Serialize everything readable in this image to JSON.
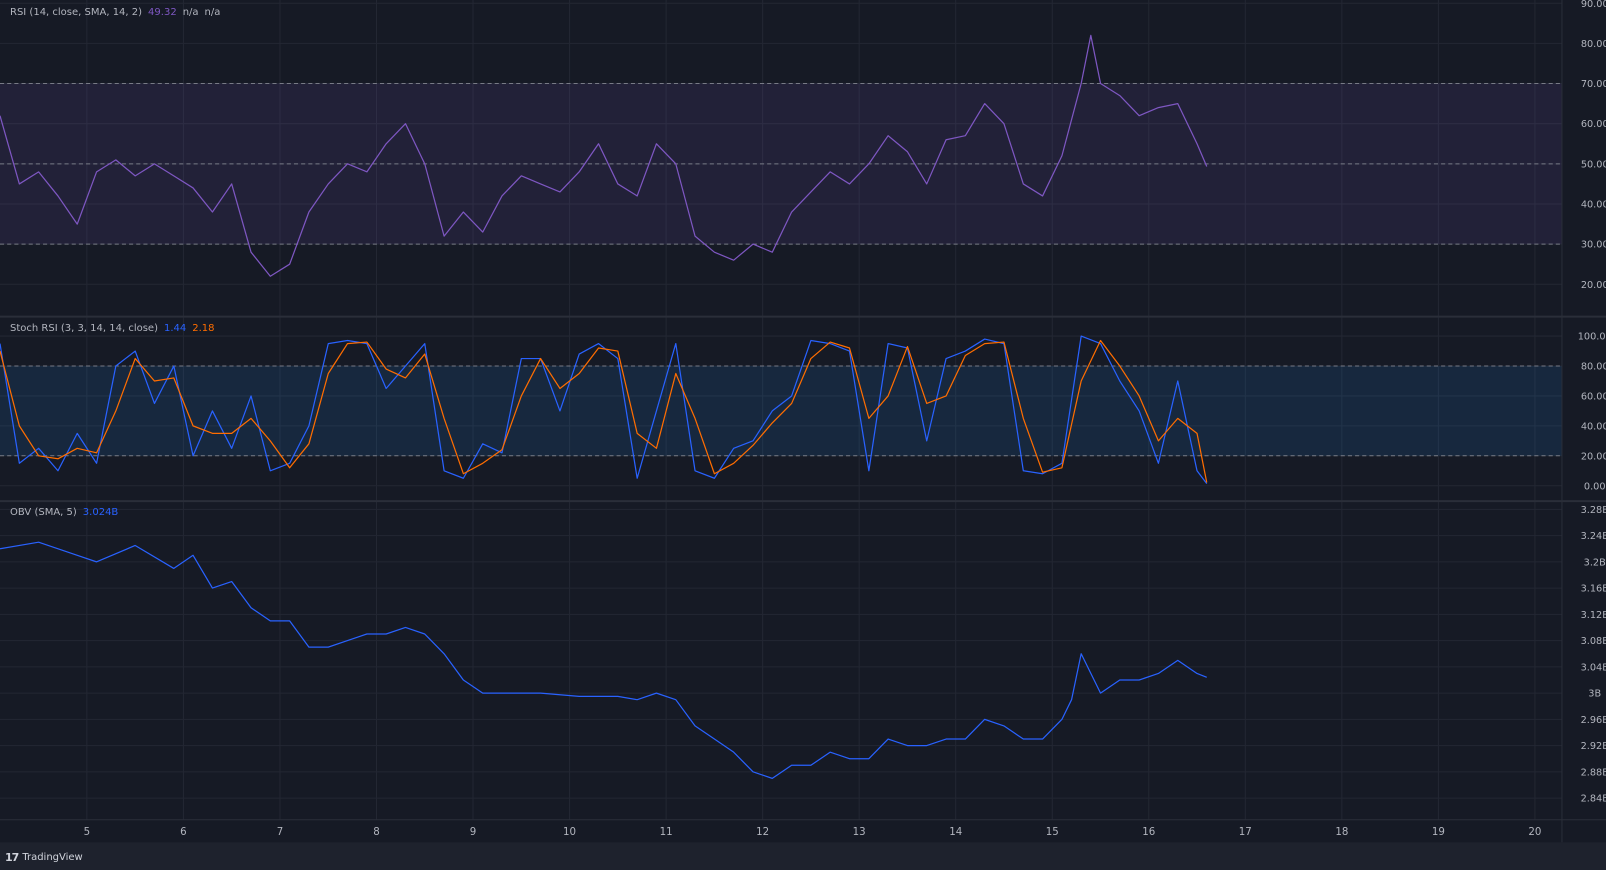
{
  "brand": "TradingView",
  "colors": {
    "background": "#161a25",
    "grid": "#232733",
    "rsi": "#7e57c2",
    "stoch_k": "#2962ff",
    "stoch_d": "#ff6d00",
    "obv": "#2962ff",
    "rsi_band": "#7e57c2",
    "stoch_band": "#2196f3",
    "text": "#b2b5be"
  },
  "chart_data": [
    {
      "type": "line",
      "legend": {
        "title": "RSI (14, close, SMA, 14, 2)",
        "value": "49.32",
        "extra1": "n/a",
        "extra2": "n/a"
      },
      "ylim": [
        12.2,
        90.8
      ],
      "yticks": [
        "90.00",
        "80.00",
        "70.00",
        "60.00",
        "50.00",
        "40.00",
        "30.00",
        "20.00"
      ],
      "ytick_values": [
        90,
        80,
        70,
        60,
        50,
        40,
        30,
        20
      ],
      "band": [
        30,
        70
      ],
      "dashed_levels": [
        70,
        50,
        30
      ],
      "x": [
        4.1,
        4.3,
        4.5,
        4.7,
        4.9,
        5.1,
        5.3,
        5.5,
        5.7,
        5.9,
        6.1,
        6.3,
        6.5,
        6.7,
        6.9,
        7.1,
        7.3,
        7.5,
        7.7,
        7.9,
        8.1,
        8.3,
        8.5,
        8.7,
        8.9,
        9.1,
        9.3,
        9.5,
        9.7,
        9.9,
        10.1,
        10.3,
        10.5,
        10.7,
        10.9,
        11.1,
        11.3,
        11.5,
        11.7,
        11.9,
        12.1,
        12.3,
        12.5,
        12.7,
        12.9,
        13.1,
        13.3,
        13.5,
        13.7,
        13.9,
        14.1,
        14.3,
        14.5,
        14.7,
        14.9,
        15.1,
        15.3,
        15.4,
        15.5,
        15.7,
        15.9,
        16.1,
        16.3,
        16.5,
        16.6
      ],
      "series": [
        {
          "values": [
            62,
            45,
            48,
            42,
            35,
            48,
            51,
            47,
            50,
            47,
            44,
            38,
            45,
            28,
            22,
            25,
            38,
            45,
            50,
            48,
            55,
            60,
            50,
            32,
            38,
            33,
            42,
            47,
            45,
            43,
            48,
            55,
            45,
            42,
            55,
            50,
            32,
            28,
            26,
            30,
            28,
            38,
            43,
            48,
            45,
            50,
            57,
            53,
            45,
            56,
            57,
            65,
            60,
            45,
            42,
            52,
            70,
            82,
            70,
            67,
            62,
            64,
            65,
            55,
            49.32
          ]
        }
      ]
    },
    {
      "type": "line",
      "legend": {
        "title": "Stoch RSI (3, 3, 14, 14, close)",
        "k": "1.44",
        "d": "2.18"
      },
      "ylim": [
        -9.6,
        112.3
      ],
      "yticks": [
        "100.00",
        "80.00",
        "60.00",
        "40.00",
        "20.00",
        "0.00"
      ],
      "ytick_values": [
        100,
        80,
        60,
        40,
        20,
        0
      ],
      "band": [
        20,
        80
      ],
      "dashed_levels": [
        80,
        20
      ],
      "x": [
        4.1,
        4.3,
        4.5,
        4.7,
        4.9,
        5.1,
        5.3,
        5.5,
        5.7,
        5.9,
        6.1,
        6.3,
        6.5,
        6.7,
        6.9,
        7.1,
        7.3,
        7.5,
        7.7,
        7.9,
        8.1,
        8.3,
        8.5,
        8.7,
        8.9,
        9.1,
        9.3,
        9.5,
        9.7,
        9.9,
        10.1,
        10.3,
        10.5,
        10.7,
        10.9,
        11.1,
        11.3,
        11.5,
        11.7,
        11.9,
        12.1,
        12.3,
        12.5,
        12.7,
        12.9,
        13.1,
        13.3,
        13.5,
        13.7,
        13.9,
        14.1,
        14.3,
        14.5,
        14.7,
        14.9,
        15.1,
        15.3,
        15.5,
        15.7,
        15.9,
        16.1,
        16.3,
        16.5,
        16.6
      ],
      "series": [
        {
          "values": [
            95,
            15,
            25,
            10,
            35,
            15,
            80,
            90,
            55,
            80,
            20,
            50,
            25,
            60,
            10,
            15,
            40,
            95,
            97,
            95,
            65,
            80,
            95,
            10,
            5,
            28,
            22,
            85,
            85,
            50,
            88,
            95,
            85,
            5,
            50,
            95,
            10,
            5,
            25,
            30,
            50,
            60,
            97,
            95,
            90,
            10,
            95,
            92,
            30,
            85,
            90,
            98,
            95,
            10,
            8,
            15,
            100,
            95,
            70,
            50,
            15,
            70,
            10,
            1.44
          ]
        },
        {
          "values": [
            90,
            40,
            20,
            18,
            25,
            22,
            50,
            85,
            70,
            72,
            40,
            35,
            35,
            45,
            30,
            12,
            28,
            75,
            95,
            96,
            78,
            72,
            88,
            45,
            8,
            15,
            24,
            60,
            85,
            65,
            75,
            92,
            90,
            35,
            25,
            75,
            45,
            8,
            15,
            27,
            42,
            55,
            85,
            96,
            92,
            45,
            60,
            93,
            55,
            60,
            87,
            95,
            96,
            45,
            9,
            12,
            70,
            97,
            80,
            60,
            30,
            45,
            35,
            2.18
          ]
        }
      ]
    },
    {
      "type": "line",
      "legend": {
        "title": "OBV (SMA, 5)",
        "value": "3.024B"
      },
      "ylim": [
        2.807,
        3.291
      ],
      "yticks": [
        "3.28B",
        "3.24B",
        "3.2B",
        "3.16B",
        "3.12B",
        "3.08B",
        "3.04B",
        "3B",
        "2.96B",
        "2.92B",
        "2.88B",
        "2.84B"
      ],
      "ytick_values": [
        3.28,
        3.24,
        3.2,
        3.16,
        3.12,
        3.08,
        3.04,
        3.0,
        2.96,
        2.92,
        2.88,
        2.84
      ],
      "x": [
        4.1,
        4.5,
        4.9,
        5.1,
        5.5,
        5.9,
        6.1,
        6.3,
        6.5,
        6.7,
        6.9,
        7.1,
        7.3,
        7.5,
        7.7,
        7.9,
        8.1,
        8.3,
        8.5,
        8.7,
        8.9,
        9.1,
        9.3,
        9.7,
        10.1,
        10.5,
        10.7,
        10.9,
        11.1,
        11.3,
        11.5,
        11.7,
        11.9,
        12.1,
        12.3,
        12.5,
        12.7,
        12.9,
        13.1,
        13.3,
        13.5,
        13.7,
        13.9,
        14.1,
        14.3,
        14.5,
        14.7,
        14.9,
        15.1,
        15.2,
        15.3,
        15.5,
        15.7,
        15.9,
        16.1,
        16.3,
        16.5,
        16.6
      ],
      "series": [
        {
          "values": [
            3.22,
            3.23,
            3.21,
            3.2,
            3.225,
            3.19,
            3.21,
            3.16,
            3.17,
            3.13,
            3.11,
            3.11,
            3.07,
            3.07,
            3.08,
            3.09,
            3.09,
            3.1,
            3.09,
            3.06,
            3.02,
            3.0,
            3.0,
            3.0,
            2.995,
            2.995,
            2.99,
            3.0,
            2.99,
            2.95,
            2.93,
            2.91,
            2.88,
            2.87,
            2.89,
            2.89,
            2.91,
            2.9,
            2.9,
            2.93,
            2.92,
            2.92,
            2.93,
            2.93,
            2.96,
            2.95,
            2.93,
            2.93,
            2.96,
            2.99,
            3.06,
            3.0,
            3.02,
            3.02,
            3.03,
            3.05,
            3.03,
            3.024
          ]
        }
      ]
    }
  ],
  "xaxis": {
    "xlim": [
      4.1,
      20.28
    ],
    "ticks": [
      "5",
      "6",
      "7",
      "8",
      "9",
      "10",
      "11",
      "12",
      "13",
      "14",
      "15",
      "16",
      "17",
      "18",
      "19",
      "20"
    ],
    "tick_values": [
      5,
      6,
      7,
      8,
      9,
      10,
      11,
      12,
      13,
      14,
      15,
      16,
      17,
      18,
      19,
      20
    ]
  }
}
